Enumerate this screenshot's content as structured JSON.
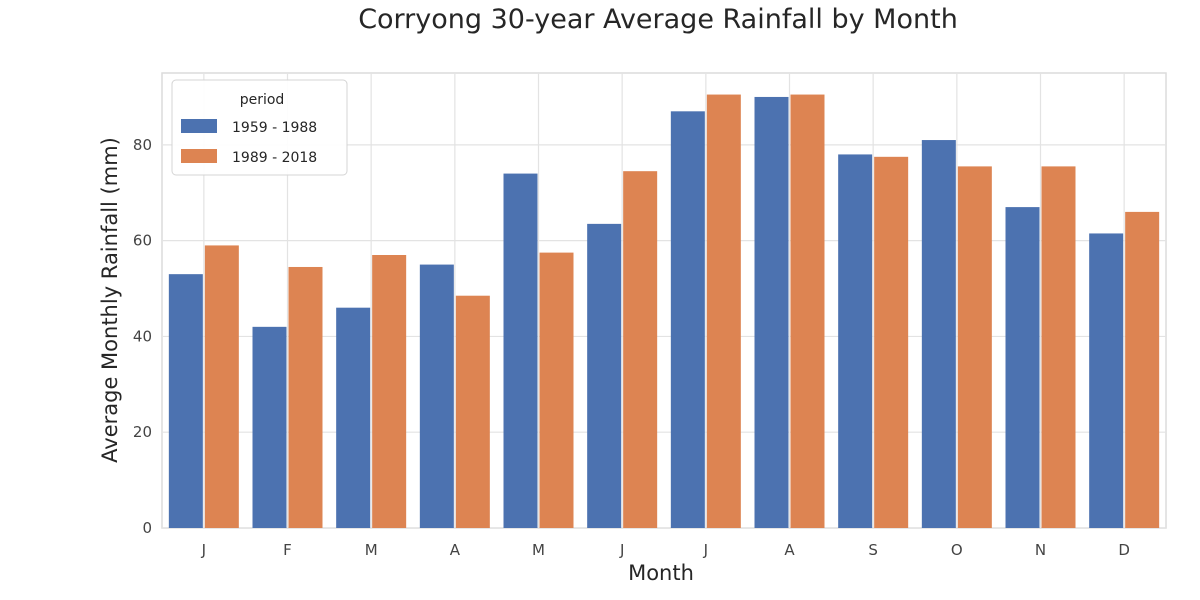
{
  "chart_data": {
    "type": "bar",
    "title": "Corryong  30-year Average Rainfall by Month",
    "xlabel": "Month",
    "ylabel": "Average Monthly Rainfall (mm)",
    "categories": [
      "J",
      "F",
      "M",
      "A",
      "M",
      "J",
      "J",
      "A",
      "S",
      "O",
      "N",
      "D"
    ],
    "series": [
      {
        "name": "1959 - 1988",
        "color": "#4c72b0",
        "values": [
          53,
          42,
          46,
          55,
          74,
          63.5,
          87,
          90,
          78,
          81,
          67,
          61.5
        ]
      },
      {
        "name": "1989 - 2018",
        "color": "#dd8452",
        "values": [
          59,
          54.5,
          57,
          48.5,
          57.5,
          74.5,
          90.5,
          90.5,
          77.5,
          75.5,
          75.5,
          66
        ]
      }
    ],
    "ylim": [
      0,
      95
    ],
    "yticks": [
      0,
      20,
      40,
      60,
      80
    ],
    "grid": true,
    "legend": {
      "title": "period",
      "placement": "top-left"
    }
  }
}
